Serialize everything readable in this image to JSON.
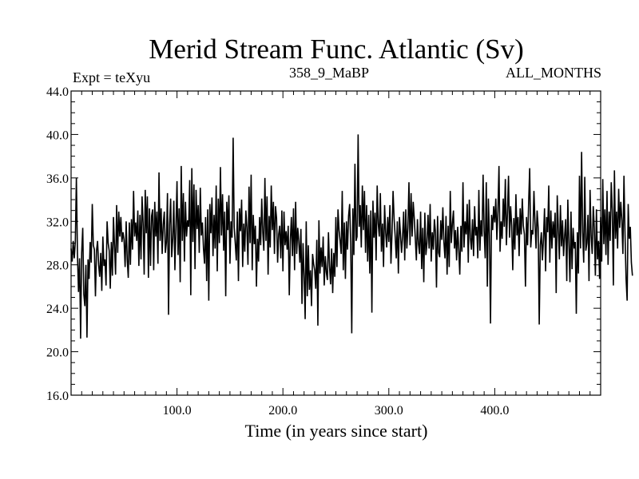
{
  "chart_data": {
    "type": "line",
    "title": "Merid Stream Func. Atlantic (Sv)",
    "subtitle_left": "Expt = teXyu",
    "subtitle_center": "358_9_MaBP",
    "subtitle_right": "ALL_MONTHS",
    "xlabel": "Time (in years since start)",
    "ylabel": "",
    "xlim": [
      0,
      500
    ],
    "ylim": [
      16,
      44
    ],
    "x_ticks": [
      100,
      200,
      300,
      400
    ],
    "x_tick_labels": [
      "100.0",
      "200.0",
      "300.0",
      "400.0"
    ],
    "y_ticks": [
      16,
      20,
      24,
      28,
      32,
      36,
      40,
      44
    ],
    "y_tick_labels": [
      "16.0",
      "20.0",
      "24.0",
      "28.0",
      "32.0",
      "36.0",
      "40.0",
      "44.0"
    ],
    "grid": false,
    "legend": "none",
    "line_color": "#000000",
    "series": [
      {
        "x_start": 0,
        "x_step": 1,
        "values": [
          29.5,
          28.3,
          30.2,
          28.6,
          30.1,
          36.0,
          29.0,
          25.5,
          28.6,
          21.2,
          29.1,
          31.4,
          25.3,
          24.2,
          28.0,
          21.3,
          28.5,
          26.7,
          30.1,
          28.2,
          33.6,
          29.8,
          29.4,
          25.1,
          29.3,
          30.2,
          28.0,
          26.9,
          29.1,
          25.6,
          30.6,
          27.9,
          28.5,
          26.1,
          32.0,
          30.0,
          29.3,
          25.8,
          30.1,
          27.0,
          32.4,
          29.7,
          27.1,
          33.5,
          29.1,
          32.9,
          30.6,
          32.4,
          30.1,
          31.0,
          30.3,
          27.8,
          32.0,
          28.5,
          26.8,
          31.9,
          28.0,
          32.2,
          29.4,
          34.8,
          30.6,
          31.9,
          30.2,
          33.0,
          27.9,
          32.6,
          28.5,
          34.3,
          31.8,
          27.1,
          34.9,
          30.9,
          34.3,
          26.8,
          33.2,
          27.9,
          32.5,
          33.1,
          27.5,
          33.8,
          30.6,
          32.9,
          28.1,
          36.5,
          30.2,
          33.2,
          29.0,
          31.7,
          32.9,
          29.1,
          30.1,
          34.6,
          23.4,
          31.7,
          34.1,
          28.7,
          30.4,
          33.9,
          27.5,
          31.4,
          35.7,
          28.9,
          33.2,
          26.4,
          37.1,
          30.2,
          34.6,
          28.3,
          33.8,
          30.6,
          32.1,
          31.5,
          35.8,
          25.2,
          36.9,
          30.1,
          35.4,
          27.6,
          34.9,
          31.3,
          33.5,
          29.1,
          35.1,
          30.7,
          31.9,
          29.5,
          28.1,
          32.4,
          26.5,
          33.1,
          24.7,
          33.6,
          30.9,
          34.2,
          28.8,
          32.6,
          29.5,
          35.3,
          27.4,
          34.1,
          30.0,
          37.0,
          30.7,
          34.5,
          29.3,
          32.9,
          25.1,
          33.8,
          31.2,
          34.4,
          28.1,
          32.0,
          30.5,
          39.7,
          31.5,
          30.0,
          28.4,
          32.9,
          26.5,
          33.2,
          31.1,
          34.0,
          27.8,
          31.8,
          29.2,
          33.0,
          31.4,
          28.0,
          35.2,
          30.0,
          36.3,
          27.5,
          32.6,
          29.9,
          31.6,
          26.0,
          30.4,
          28.3,
          32.4,
          29.8,
          34.1,
          31.0,
          29.3,
          36.0,
          30.2,
          34.3,
          27.1,
          32.5,
          29.6,
          35.3,
          31.2,
          33.8,
          29.0,
          33.4,
          32.3,
          28.2,
          30.8,
          31.6,
          28.6,
          33.0,
          27.4,
          32.9,
          29.8,
          31.1,
          29.4,
          31.6,
          25.2,
          30.2,
          32.4,
          28.8,
          33.2,
          27.5,
          33.8,
          29.0,
          31.4,
          30.2,
          28.2,
          31.3,
          24.4,
          30.0,
          27.0,
          23.0,
          32.0,
          25.1,
          29.8,
          25.7,
          27.5,
          24.2,
          29.0,
          28.1,
          27.5,
          25.8,
          30.3,
          22.4,
          32.1,
          27.2,
          29.6,
          27.8,
          30.6,
          26.1,
          28.8,
          27.3,
          26.6,
          31.0,
          27.9,
          26.2,
          29.5,
          25.4,
          29.1,
          26.9,
          32.4,
          27.8,
          33.1,
          31.2,
          30.2,
          29.0,
          34.8,
          27.5,
          31.9,
          26.7,
          32.0,
          29.4,
          32.5,
          33.6,
          30.0,
          21.7,
          33.2,
          28.9,
          37.3,
          30.2,
          30.6,
          40.0,
          31.5,
          33.5,
          29.6,
          35.3,
          31.2,
          34.8,
          29.1,
          33.5,
          28.3,
          32.6,
          27.2,
          33.0,
          23.6,
          33.9,
          30.5,
          32.8,
          28.4,
          35.3,
          31.8,
          30.6,
          34.6,
          29.2,
          31.8,
          27.8,
          33.5,
          31.0,
          29.6,
          32.4,
          30.1,
          33.5,
          28.1,
          30.9,
          34.8,
          32.2,
          30.6,
          28.6,
          32.0,
          27.2,
          32.4,
          30.8,
          29.1,
          30.6,
          32.9,
          28.4,
          33.1,
          29.5,
          31.4,
          35.6,
          29.8,
          34.6,
          30.6,
          33.8,
          32.3,
          30.4,
          28.4,
          32.2,
          29.9,
          29.0,
          32.9,
          27.6,
          31.4,
          26.4,
          32.8,
          28.9,
          30.0,
          32.6,
          29.5,
          33.6,
          28.3,
          31.0,
          29.4,
          32.2,
          31.0,
          25.9,
          32.5,
          29.1,
          28.7,
          32.1,
          30.3,
          33.3,
          30.1,
          28.6,
          32.5,
          27.1,
          31.6,
          27.8,
          34.8,
          30.0,
          31.8,
          33.0,
          29.5,
          31.2,
          28.4,
          31.5,
          29.4,
          27.1,
          31.6,
          29.2,
          35.6,
          29.6,
          32.0,
          30.8,
          33.6,
          28.2,
          34.0,
          30.5,
          29.4,
          32.2,
          28.8,
          33.4,
          30.7,
          31.5,
          28.6,
          34.9,
          29.3,
          32.1,
          30.6,
          36.3,
          31.1,
          28.6,
          35.6,
          26.0,
          34.1,
          30.7,
          22.6,
          32.6,
          31.2,
          33.4,
          31.9,
          34.1,
          30.3,
          33.0,
          37.1,
          29.2,
          32.0,
          30.4,
          34.1,
          31.5,
          35.9,
          29.8,
          32.8,
          36.2,
          30.5,
          33.4,
          31.6,
          27.5,
          32.3,
          29.4,
          34.5,
          30.7,
          32.4,
          28.8,
          33.2,
          30.8,
          34.1,
          31.6,
          30.8,
          26.0,
          32.4,
          29.8,
          33.7,
          36.9,
          29.6,
          31.2,
          30.8,
          34.8,
          31.9,
          29.5,
          33.0,
          31.4,
          22.5,
          29.8,
          31.0,
          28.4,
          30.4,
          33.2,
          27.4,
          32.4,
          31.0,
          35.3,
          28.2,
          33.0,
          29.5,
          32.0,
          30.5,
          32.8,
          25.4,
          34.4,
          31.4,
          28.5,
          33.5,
          29.7,
          32.1,
          28.8,
          30.7,
          32.2,
          26.5,
          34.0,
          30.0,
          26.4,
          32.9,
          27.6,
          31.4,
          29.5,
          30.1,
          23.5,
          31.0,
          27.2,
          36.2,
          29.5,
          38.4,
          31.0,
          28.2,
          36.1,
          29.3,
          30.0,
          32.6,
          26.5,
          34.9,
          30.7,
          29.0,
          33.4,
          31.4,
          27.0,
          33.1,
          28.5,
          30.2,
          26.7,
          32.4,
          28.3,
          35.9,
          29.9,
          33.1,
          28.9,
          34.8,
          28.0,
          32.9,
          30.2,
          35.6,
          33.0,
          26.1,
          36.7,
          30.4,
          32.9,
          29.5,
          35.0,
          31.4,
          33.8,
          32.1,
          29.0,
          36.2,
          30.8,
          26.7,
          24.7,
          33.6,
          30.4,
          31.5,
          28.2,
          27.0
        ]
      }
    ]
  }
}
